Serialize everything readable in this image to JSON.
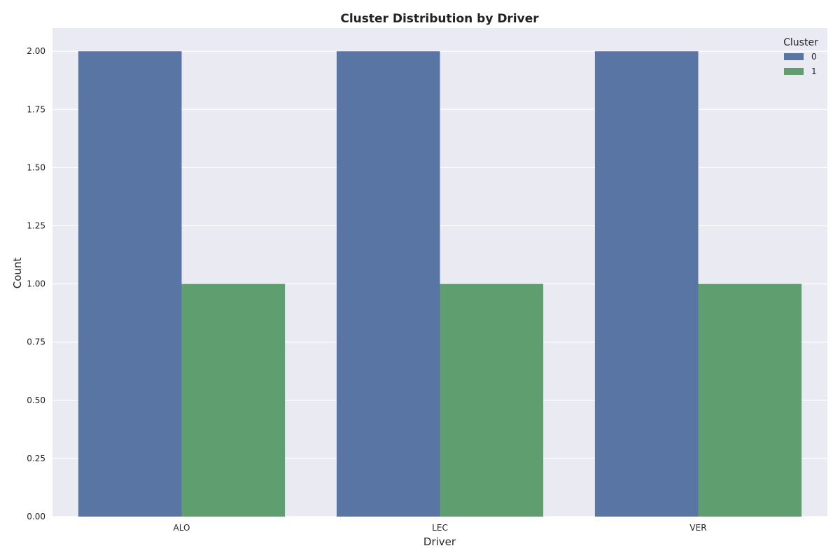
{
  "chart_data": {
    "type": "bar",
    "title": "Cluster Distribution by Driver",
    "xlabel": "Driver",
    "ylabel": "Count",
    "categories": [
      "ALO",
      "LEC",
      "VER"
    ],
    "series": [
      {
        "name": "0",
        "values": [
          2,
          2,
          2
        ],
        "color": "#5975a4"
      },
      {
        "name": "1",
        "values": [
          1,
          1,
          1
        ],
        "color": "#5f9e6e"
      }
    ],
    "ylim": [
      0,
      2.1
    ],
    "yticks": [
      "0.00",
      "0.25",
      "0.50",
      "0.75",
      "1.00",
      "1.25",
      "1.50",
      "1.75",
      "2.00"
    ],
    "grid": true,
    "legend": {
      "title": "Cluster",
      "position": "top-right"
    },
    "background": "#eaeaf2"
  }
}
